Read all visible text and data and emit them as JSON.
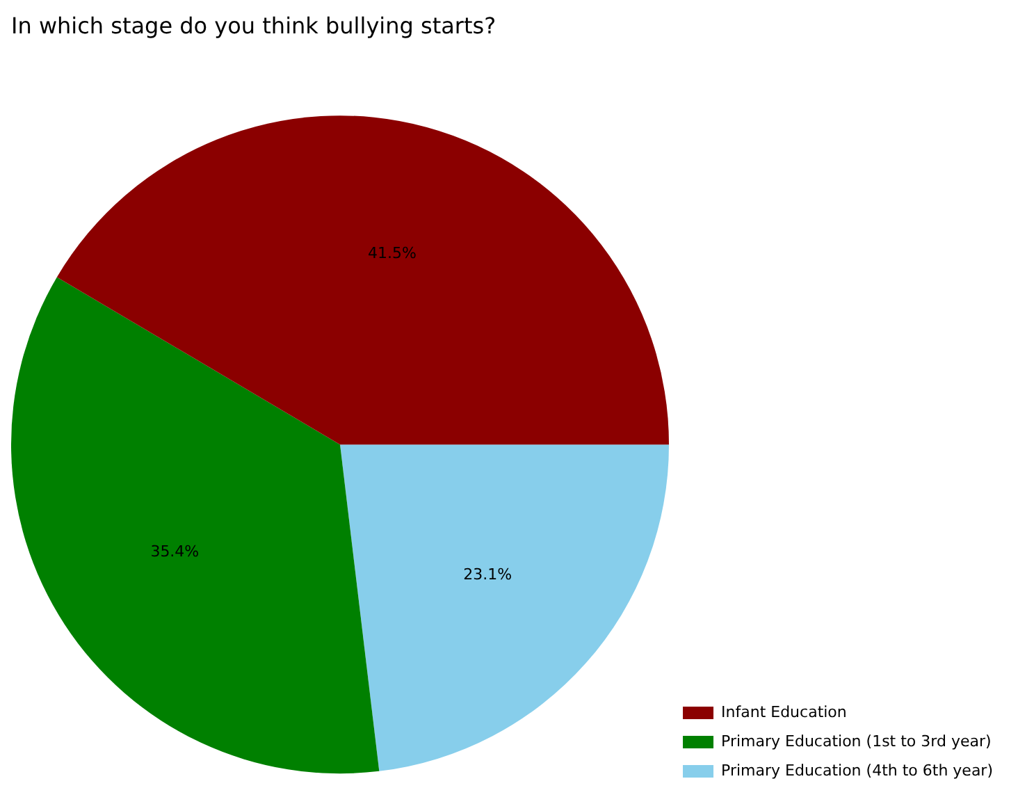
{
  "chart_data": {
    "type": "pie",
    "title": "In which stage do you think bullying starts?",
    "categories": [
      "Infant Education",
      "Primary Education (1st to 3rd year)",
      "Primary Education (4th to 6th year)"
    ],
    "values": [
      41.5,
      35.4,
      23.1
    ],
    "value_labels": [
      "41.5%",
      "35.4%",
      "23.1%"
    ],
    "colors": [
      "#8b0000",
      "#008000",
      "#87ceeb"
    ],
    "legend": "bottom right"
  }
}
